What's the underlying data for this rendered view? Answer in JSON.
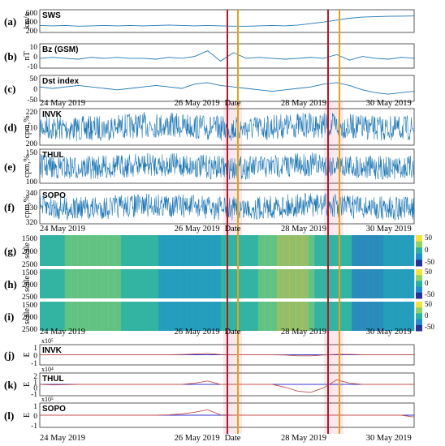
{
  "colors": {
    "signal": "#1f77b4",
    "event_red": "#b2182b",
    "event_orange": "#e6a117",
    "band_pink": "#f7d6dc",
    "white_bar": "#ffffff"
  },
  "chart_data": {
    "type": "multi-panel",
    "x_ticks": [
      "24 May 2019",
      "26 May 2019",
      "28 May 2019",
      "30 May 2019"
    ],
    "x_center_label": "Date",
    "events": [
      {
        "red_line": "2019-05-26T18:00",
        "orange_line": "2019-05-26T22:00"
      },
      {
        "red_line": "2019-05-29T01:00",
        "orange_line": "2019-05-29T05:00"
      }
    ],
    "panels": [
      {
        "id": "a",
        "letter": "(a)",
        "name": "SWS",
        "ylabel": "km/s",
        "ticks": [
          "600",
          "400",
          "200"
        ],
        "kind": "line",
        "series": [
          330,
          320,
          330,
          310,
          320,
          330,
          320,
          330,
          320,
          330,
          340,
          330,
          320,
          330,
          320,
          310,
          310,
          320,
          330,
          320,
          340,
          380,
          420,
          470,
          520,
          550,
          560,
          570,
          575,
          580
        ]
      },
      {
        "id": "b",
        "letter": "(b)",
        "name": "Bz (GSM)",
        "ylabel": "nT",
        "ticks": [
          "10",
          "0",
          "-10"
        ],
        "kind": "line",
        "series": [
          0,
          1,
          0,
          -1,
          1,
          0,
          1,
          0,
          0,
          -1,
          1,
          0,
          2,
          8,
          -3,
          6,
          0,
          1,
          0,
          -1,
          0,
          1,
          0,
          4,
          -2,
          2,
          0,
          -1,
          1,
          0
        ]
      },
      {
        "id": "c",
        "letter": "(c)",
        "name": "Dst index",
        "ylabel": "",
        "ticks": [
          "50",
          "0",
          "-50"
        ],
        "kind": "line",
        "series": [
          0,
          -5,
          0,
          5,
          0,
          -5,
          -10,
          -5,
          0,
          5,
          0,
          -5,
          10,
          15,
          5,
          0,
          -5,
          -10,
          -15,
          -10,
          -5,
          0,
          10,
          15,
          5,
          -10,
          -20,
          -25,
          -20,
          -15
        ]
      },
      {
        "id": "d",
        "letter": "(d)",
        "name": "INVK",
        "ylabel": "cpm,%",
        "ticks": [
          "220",
          "210",
          "200"
        ],
        "kind": "noise",
        "center": 204,
        "amp": 5
      },
      {
        "id": "e",
        "letter": "(e)",
        "name": "THUL",
        "ylabel": "cpm,%",
        "ticks": [
          "150",
          "100"
        ],
        "kind": "noise",
        "center": 128,
        "amp": 10
      },
      {
        "id": "f",
        "letter": "(f)",
        "name": "SOPO",
        "ylabel": "cpm,%",
        "ticks": [
          "340",
          "330",
          "320"
        ],
        "kind": "noise",
        "center": 325,
        "amp": 5
      },
      {
        "id": "g",
        "letter": "(g)",
        "name": "INVK",
        "ylabel": "scale",
        "ticks": [
          "1500",
          "2000",
          "2500"
        ],
        "kind": "heatmap",
        "cbar": [
          "50",
          "0",
          "-50"
        ]
      },
      {
        "id": "h",
        "letter": "(h)",
        "name": "THUL",
        "ylabel": "scale",
        "ticks": [
          "1500",
          "2000",
          "2500"
        ],
        "kind": "heatmap",
        "cbar": [
          "50",
          "0",
          "-50"
        ]
      },
      {
        "id": "i",
        "letter": "(i)",
        "name": "SOPO",
        "ylabel": "scale",
        "ticks": [
          "1500",
          "2000",
          "2500"
        ],
        "kind": "heatmap",
        "cbar": [
          "50",
          "0",
          "-50"
        ]
      },
      {
        "id": "j",
        "letter": "(j)",
        "name": "INVK",
        "ylabel": "E",
        "ticks": [
          "1",
          "0",
          "-1"
        ],
        "kind": "energy",
        "exp": "x10⁵",
        "series": [
          0,
          0,
          0,
          0,
          0,
          0,
          0,
          0,
          0,
          0,
          0,
          0.05,
          0.15,
          0.25,
          0.05,
          0,
          0,
          0,
          0,
          -0.05,
          -0.2,
          -0.2,
          -0.05,
          0.1,
          0.1,
          0,
          0,
          0,
          0,
          0
        ]
      },
      {
        "id": "k",
        "letter": "(k)",
        "name": "THUL",
        "ylabel": "E",
        "ticks": [
          "2",
          "1",
          "0",
          "-1"
        ],
        "kind": "energy",
        "exp": "x10⁴",
        "series": [
          0,
          -0.1,
          -0.05,
          0,
          0,
          0,
          0,
          0,
          0,
          0,
          0,
          0,
          0.2,
          0.6,
          0,
          0,
          0,
          0,
          0,
          -0.5,
          -1.2,
          -1.4,
          -0.6,
          0.8,
          0.2,
          0,
          0,
          0,
          0,
          0
        ]
      },
      {
        "id": "l",
        "letter": "(l)",
        "name": "SOPO",
        "ylabel": "E",
        "ticks": [
          "1",
          "0",
          "-1"
        ],
        "kind": "energy",
        "exp": "x10⁵",
        "series": [
          0,
          0,
          0,
          0,
          0,
          0,
          0,
          0,
          0,
          0,
          0.05,
          0.2,
          0.5,
          0.9,
          0.05,
          0,
          0,
          0,
          0,
          0,
          0,
          0,
          0,
          0,
          0,
          0,
          0,
          0,
          0,
          -0.3
        ]
      }
    ]
  }
}
